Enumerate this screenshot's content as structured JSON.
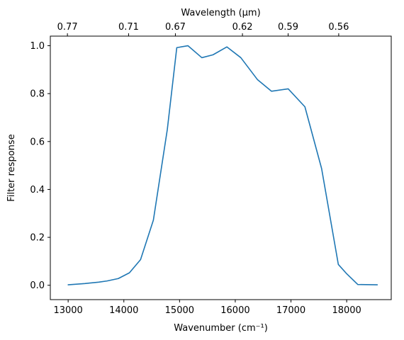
{
  "chart_data": {
    "type": "line",
    "xlabel": "Wavenumber (cm⁻¹)",
    "ylabel": "Filter response",
    "top_xlabel": "Wavelength (μm)",
    "xlim": [
      12680,
      18800
    ],
    "ylim": [
      -0.06,
      1.04
    ],
    "x_ticks": [
      13000,
      14000,
      15000,
      16000,
      17000,
      18000
    ],
    "x_tick_labels": [
      "13000",
      "14000",
      "15000",
      "16000",
      "17000",
      "18000"
    ],
    "y_ticks": [
      0.0,
      0.2,
      0.4,
      0.6,
      0.8,
      1.0
    ],
    "y_tick_labels": [
      "0.0",
      "0.2",
      "0.4",
      "0.6",
      "0.8",
      "1.0"
    ],
    "top_x_ticks": [
      12987,
      14085,
      14925,
      16129,
      16949,
      17857
    ],
    "top_x_tick_labels": [
      "0.77",
      "0.71",
      "0.67",
      "0.62",
      "0.59",
      "0.56"
    ],
    "grid": false,
    "color": "#1f77b4",
    "series": [
      {
        "x": [
          13000,
          13300,
          13550,
          13700,
          13900,
          14100,
          14300,
          14530,
          14780,
          14950,
          15150,
          15400,
          15600,
          15850,
          16100,
          16400,
          16650,
          16950,
          17250,
          17550,
          17850,
          18000,
          18200,
          18550
        ],
        "y": [
          0.002,
          0.007,
          0.013,
          0.018,
          0.028,
          0.052,
          0.107,
          0.272,
          0.65,
          0.992,
          1.0,
          0.95,
          0.962,
          0.995,
          0.95,
          0.858,
          0.81,
          0.82,
          0.745,
          0.487,
          0.087,
          0.048,
          0.003,
          0.002
        ]
      }
    ]
  }
}
